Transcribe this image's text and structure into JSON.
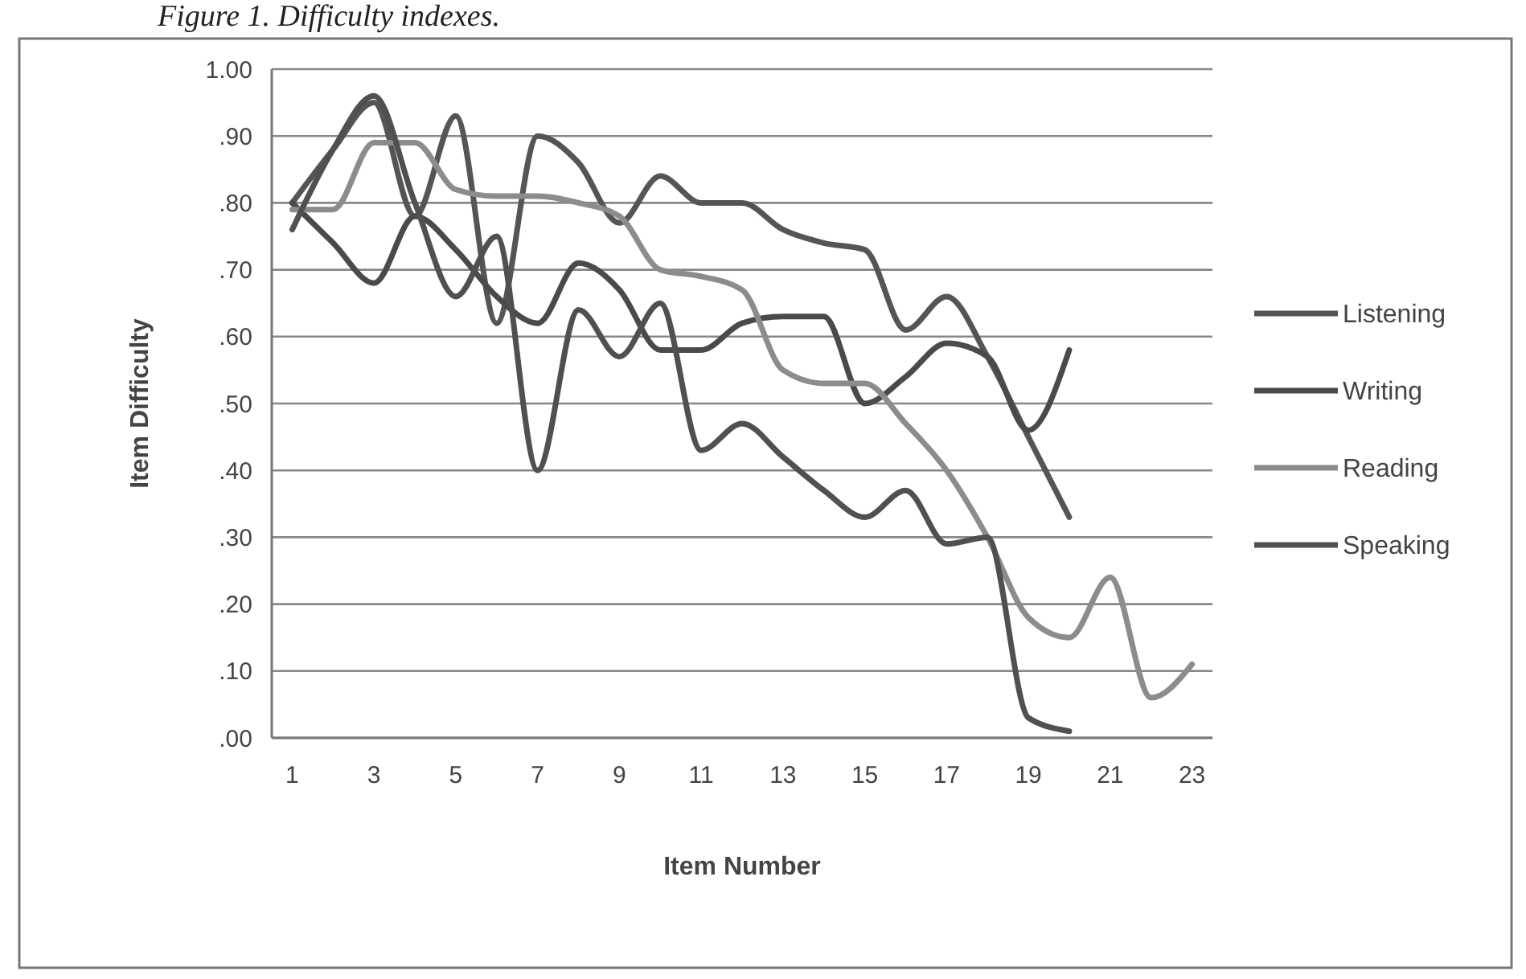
{
  "chart_data": {
    "type": "line",
    "title": "Figure 1. Difficulty indexes.",
    "xlabel": "Item Number",
    "ylabel": "Item Difficulty",
    "xlim": [
      0.5,
      23.5
    ],
    "xticks": [
      1,
      3,
      5,
      7,
      9,
      11,
      13,
      15,
      17,
      19,
      21,
      23
    ],
    "ylim": [
      0,
      1
    ],
    "yticks": [
      {
        "value": 0,
        "label": ".00"
      },
      {
        "value": 0.1,
        "label": ".10"
      },
      {
        "value": 0.2,
        "label": ".20"
      },
      {
        "value": 0.3,
        "label": ".30"
      },
      {
        "value": 0.4,
        "label": ".40"
      },
      {
        "value": 0.5,
        "label": ".50"
      },
      {
        "value": 0.6,
        "label": ".60"
      },
      {
        "value": 0.7,
        "label": ".70"
      },
      {
        "value": 0.8,
        "label": ".80"
      },
      {
        "value": 0.9,
        "label": ".90"
      },
      {
        "value": 1,
        "label": "1.00"
      }
    ],
    "grid": "y",
    "legend": "right",
    "marker": "none",
    "line_style": "solid",
    "series": [
      {
        "name": "Listening",
        "color": "#555555",
        "x": [
          1,
          2,
          3,
          4,
          5,
          6,
          7,
          8,
          9,
          10,
          11,
          12,
          13,
          14,
          15,
          16,
          17,
          18,
          19,
          20
        ],
        "values": [
          0.8,
          0.88,
          0.95,
          0.78,
          0.93,
          0.62,
          0.9,
          0.86,
          0.77,
          0.84,
          0.8,
          0.8,
          0.76,
          0.74,
          0.73,
          0.61,
          0.66,
          0.57,
          0.45,
          0.33
        ]
      },
      {
        "name": "Writing",
        "color": "#4a4a4a",
        "x": [
          1,
          2,
          3,
          4,
          5,
          6,
          7,
          8,
          9,
          10,
          11,
          12,
          13,
          14,
          15,
          16,
          17,
          18,
          19,
          20
        ],
        "values": [
          0.8,
          0.74,
          0.68,
          0.78,
          0.73,
          0.66,
          0.62,
          0.71,
          0.67,
          0.58,
          0.58,
          0.62,
          0.63,
          0.63,
          0.5,
          0.54,
          0.59,
          0.57,
          0.46,
          0.58
        ]
      },
      {
        "name": "Reading",
        "color": "#8c8c8c",
        "x": [
          1,
          2,
          3,
          4,
          5,
          6,
          7,
          8,
          9,
          10,
          11,
          12,
          13,
          14,
          15,
          16,
          17,
          18,
          19,
          20,
          21,
          22,
          23
        ],
        "values": [
          0.79,
          0.79,
          0.89,
          0.89,
          0.82,
          0.81,
          0.81,
          0.8,
          0.78,
          0.7,
          0.69,
          0.67,
          0.55,
          0.53,
          0.53,
          0.47,
          0.4,
          0.3,
          0.18,
          0.15,
          0.24,
          0.06,
          0.11
        ]
      },
      {
        "name": "Speaking",
        "color": "#505050",
        "x": [
          1,
          2,
          3,
          4,
          5,
          6,
          7,
          8,
          9,
          10,
          11,
          12,
          13,
          14,
          15,
          16,
          17,
          18,
          19,
          20
        ],
        "values": [
          0.76,
          0.88,
          0.96,
          0.8,
          0.66,
          0.75,
          0.4,
          0.64,
          0.57,
          0.65,
          0.43,
          0.47,
          0.42,
          0.37,
          0.33,
          0.37,
          0.29,
          0.3,
          0.03,
          0.01
        ]
      }
    ]
  }
}
